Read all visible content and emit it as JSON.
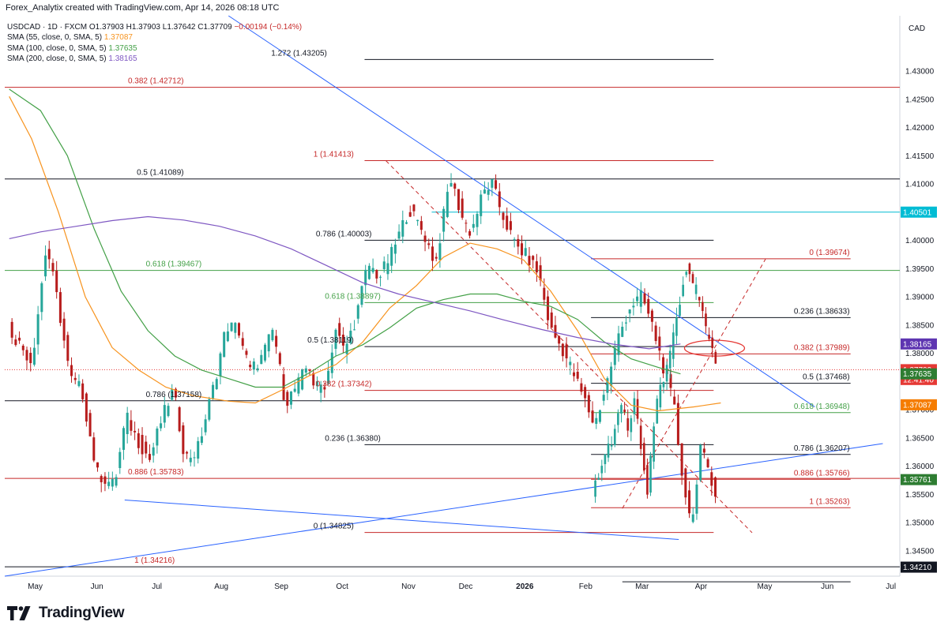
{
  "header": {
    "credit": "Forex_Analytix created with TradingView.com, Apr 14, 2026 08:18 UTC"
  },
  "legend": {
    "symbol_line": "USDCAD · 1D · FXCM",
    "ohlc": {
      "o": "O1.37903",
      "h": "H1.37903",
      "l": "L1.37642",
      "c": "C1.37709",
      "chg": "−0.00194 (−0.14%)"
    },
    "sma": [
      {
        "label": "SMA (55, close, 0, SMA, 5)",
        "value": "1.37087",
        "color": "#f7931e"
      },
      {
        "label": "SMA (100, close, 0, SMA, 5)",
        "value": "1.37635",
        "color": "#43a047"
      },
      {
        "label": "SMA (200, close, 0, SMA, 5)",
        "value": "1.38165",
        "color": "#7e57c2"
      }
    ]
  },
  "currency": "CAD",
  "footer": {
    "brand": "TradingView"
  },
  "colors": {
    "up": "#26a69a",
    "down": "#b71c1c",
    "fib_red": "#c62828",
    "fib_green": "#43a047",
    "trend_blue": "#2962ff",
    "cyan": "#00bcd4",
    "ellipse": "#e53935"
  },
  "chart_data": {
    "type": "candlestick",
    "title": "USDCAD · 1D · FXCM",
    "y_axis": {
      "min": 1.3405,
      "max": 1.4398,
      "side": "right",
      "ticks": [
        "1.43000",
        "1.42500",
        "1.42000",
        "1.41500",
        "1.41000",
        "1.40500",
        "1.40000",
        "1.39500",
        "1.39000",
        "1.38500",
        "1.38000",
        "1.37500",
        "1.37000",
        "1.36500",
        "1.36000",
        "1.35500",
        "1.35000",
        "1.34500"
      ]
    },
    "x_axis": {
      "labels": [
        "May",
        "Jun",
        "Jul",
        "Aug",
        "Sep",
        "Oct",
        "Nov",
        "Dec",
        "2026",
        "Feb",
        "Mar",
        "Apr",
        "May",
        "Jun",
        "Jul"
      ]
    },
    "price_tags": [
      {
        "value": "1.40501",
        "bg": "#00bcd4",
        "fg": "#ffffff",
        "y": 1.40501
      },
      {
        "value": "1.38165",
        "bg": "#5e35b1",
        "fg": "#ffffff",
        "y": 1.38165
      },
      {
        "value": "1.37709",
        "bg": "#e53935",
        "fg": "#ffffff",
        "y": 1.37709
      },
      {
        "value": "12:41:40",
        "bg": "#e53935",
        "fg": "#ffffff",
        "y": 1.37535
      },
      {
        "value": "1.37635",
        "bg": "#2e7d32",
        "fg": "#ffffff",
        "y": 1.37635
      },
      {
        "value": "1.37087",
        "bg": "#f57c00",
        "fg": "#ffffff",
        "y": 1.37087
      },
      {
        "value": "1.35761",
        "bg": "#2e7d32",
        "fg": "#ffffff",
        "y": 1.35761
      },
      {
        "value": "1.34210",
        "bg": "#131722",
        "fg": "#ffffff",
        "y": 1.3421
      }
    ],
    "fib_labels": [
      {
        "text": "1.272 (1.43205)",
        "color": "#131722",
        "y": 1.43205
      },
      {
        "text": "0.382 (1.42712)",
        "color": "#c62828",
        "y": 1.42712
      },
      {
        "text": "1 (1.41413)",
        "color": "#c62828",
        "y": 1.41413
      },
      {
        "text": "0.5 (1.41089)",
        "color": "#131722",
        "y": 1.41089
      },
      {
        "text": "0.786 (1.40003)",
        "color": "#131722",
        "y": 1.40003
      },
      {
        "text": "0.618 (1.39467)",
        "color": "#43a047",
        "y": 1.39467
      },
      {
        "text": "0.618 (1.38897)",
        "color": "#43a047",
        "y": 1.38897
      },
      {
        "text": "0.5 (1.38119)",
        "color": "#131722",
        "y": 1.38119
      },
      {
        "text": "0.382 (1.37342)",
        "color": "#c62828",
        "y": 1.37342
      },
      {
        "text": "0.786 (1.37158)",
        "color": "#131722",
        "y": 1.37158
      },
      {
        "text": "0.236 (1.36380)",
        "color": "#131722",
        "y": 1.3638
      },
      {
        "text": "0.886 (1.35783)",
        "color": "#c62828",
        "y": 1.35783
      },
      {
        "text": "0 (1.34825)",
        "color": "#131722",
        "y": 1.34825
      },
      {
        "text": "1 (1.34216)",
        "color": "#c62828",
        "y": 1.34216
      },
      {
        "text": "0 (1.39674)",
        "color": "#c62828",
        "y": 1.39674
      },
      {
        "text": "0.236 (1.38633)",
        "color": "#131722",
        "y": 1.38633
      },
      {
        "text": "0.382 (1.37989)",
        "color": "#c62828",
        "y": 1.37989
      },
      {
        "text": "0.5 (1.37468)",
        "color": "#131722",
        "y": 1.37468
      },
      {
        "text": "0.618 (1.36948)",
        "color": "#43a047",
        "y": 1.36948
      },
      {
        "text": "0.786 (1.36207)",
        "color": "#131722",
        "y": 1.36207
      },
      {
        "text": "0.886 (1.35766)",
        "color": "#c62828",
        "y": 1.35766
      },
      {
        "text": "1 (1.35263)",
        "color": "#c62828",
        "y": 1.35263
      }
    ],
    "sma_series": [
      {
        "name": "SMA 55",
        "color": "#f7931e",
        "points": [
          [
            0.005,
            1.4255
          ],
          [
            0.03,
            1.418
          ],
          [
            0.06,
            1.405
          ],
          [
            0.09,
            1.39
          ],
          [
            0.12,
            1.381
          ],
          [
            0.15,
            1.377
          ],
          [
            0.18,
            1.374
          ],
          [
            0.21,
            1.3725
          ],
          [
            0.25,
            1.3715
          ],
          [
            0.28,
            1.3712
          ],
          [
            0.31,
            1.3735
          ],
          [
            0.34,
            1.376
          ],
          [
            0.37,
            1.378
          ],
          [
            0.4,
            1.382
          ],
          [
            0.43,
            1.388
          ],
          [
            0.46,
            1.392
          ],
          [
            0.49,
            1.397
          ],
          [
            0.52,
            1.3995
          ],
          [
            0.55,
            1.3985
          ],
          [
            0.58,
            1.3965
          ],
          [
            0.61,
            1.391
          ],
          [
            0.64,
            1.384
          ],
          [
            0.67,
            1.3755
          ],
          [
            0.7,
            1.3708
          ],
          [
            0.73,
            1.3698
          ],
          [
            0.77,
            1.3705
          ],
          [
            0.8,
            1.3712
          ]
        ]
      },
      {
        "name": "SMA 100",
        "color": "#43a047",
        "points": [
          [
            0.005,
            1.4268
          ],
          [
            0.04,
            1.423
          ],
          [
            0.07,
            1.415
          ],
          [
            0.1,
            1.402
          ],
          [
            0.13,
            1.391
          ],
          [
            0.16,
            1.384
          ],
          [
            0.19,
            1.3795
          ],
          [
            0.22,
            1.377
          ],
          [
            0.25,
            1.3755
          ],
          [
            0.28,
            1.374
          ],
          [
            0.31,
            1.374
          ],
          [
            0.34,
            1.3765
          ],
          [
            0.37,
            1.3795
          ],
          [
            0.4,
            1.3815
          ],
          [
            0.43,
            1.3845
          ],
          [
            0.46,
            1.388
          ],
          [
            0.49,
            1.3895
          ],
          [
            0.52,
            1.3905
          ],
          [
            0.55,
            1.3905
          ],
          [
            0.58,
            1.3892
          ],
          [
            0.61,
            1.3883
          ],
          [
            0.64,
            1.386
          ],
          [
            0.67,
            1.382
          ],
          [
            0.7,
            1.379
          ],
          [
            0.73,
            1.3775
          ],
          [
            0.755,
            1.37635
          ]
        ]
      },
      {
        "name": "SMA 200",
        "color": "#7e57c2",
        "points": [
          [
            0.005,
            1.4003
          ],
          [
            0.04,
            1.4015
          ],
          [
            0.08,
            1.4025
          ],
          [
            0.12,
            1.4035
          ],
          [
            0.16,
            1.4042
          ],
          [
            0.2,
            1.4036
          ],
          [
            0.24,
            1.4025
          ],
          [
            0.28,
            1.4008
          ],
          [
            0.32,
            1.3985
          ],
          [
            0.36,
            1.3955
          ],
          [
            0.4,
            1.3925
          ],
          [
            0.44,
            1.3905
          ],
          [
            0.48,
            1.389
          ],
          [
            0.52,
            1.3875
          ],
          [
            0.56,
            1.3858
          ],
          [
            0.6,
            1.3842
          ],
          [
            0.64,
            1.3828
          ],
          [
            0.68,
            1.3816
          ],
          [
            0.72,
            1.3808
          ],
          [
            0.755,
            1.38165
          ]
        ]
      }
    ],
    "candles": {
      "n": 240,
      "start_x_frac": 0.006,
      "end_x_frac": 0.796,
      "anchors": [
        [
          0,
          1.3845
        ],
        [
          8,
          1.3785
        ],
        [
          13,
          1.3992
        ],
        [
          17,
          1.3885
        ],
        [
          21,
          1.3755
        ],
        [
          25,
          1.3735
        ],
        [
          30,
          1.3588
        ],
        [
          36,
          1.3565
        ],
        [
          40,
          1.3688
        ],
        [
          44,
          1.3645
        ],
        [
          48,
          1.3612
        ],
        [
          52,
          1.3682
        ],
        [
          56,
          1.3735
        ],
        [
          60,
          1.3615
        ],
        [
          64,
          1.3625
        ],
        [
          66,
          1.3665
        ],
        [
          70,
          1.3748
        ],
        [
          74,
          1.3848
        ],
        [
          78,
          1.3845
        ],
        [
          82,
          1.3768
        ],
        [
          86,
          1.3792
        ],
        [
          90,
          1.3843
        ],
        [
          94,
          1.3712
        ],
        [
          98,
          1.3742
        ],
        [
          102,
          1.3782
        ],
        [
          104,
          1.3738
        ],
        [
          108,
          1.3748
        ],
        [
          111,
          1.3845
        ],
        [
          114,
          1.3803
        ],
        [
          118,
          1.3862
        ],
        [
          122,
          1.3958
        ],
        [
          126,
          1.3935
        ],
        [
          130,
          1.3975
        ],
        [
          136,
          1.4056
        ],
        [
          141,
          1.4013
        ],
        [
          145,
          1.3958
        ],
        [
          150,
          1.4112
        ],
        [
          154,
          1.4042
        ],
        [
          157,
          1.4013
        ],
        [
          161,
          1.4082
        ],
        [
          164,
          1.4102
        ],
        [
          168,
          1.4042
        ],
        [
          172,
          1.3992
        ],
        [
          176,
          1.3972
        ],
        [
          180,
          1.3942
        ],
        [
          184,
          1.3843
        ],
        [
          188,
          1.3808
        ],
        [
          192,
          1.3762
        ],
        [
          196,
          1.3712
        ],
        [
          199,
          1.3672
        ],
        [
          203,
          1.3745
        ],
        [
          207,
          1.3828
        ],
        [
          211,
          1.3882
        ],
        [
          215,
          1.3902
        ],
        [
          219,
          1.3842
        ],
        [
          223,
          1.3762
        ],
        [
          226,
          1.3705
        ],
        [
          228,
          1.3612
        ],
        [
          231,
          1.3512
        ],
        [
          233,
          1.3532
        ],
        [
          235,
          1.3628
        ],
        [
          238,
          1.3592
        ],
        [
          240,
          1.3552
        ]
      ]
    },
    "candles2": {
      "start_x_frac": 0.658,
      "end_x_frac": 0.796,
      "anchors": [
        [
          0,
          1.3555
        ],
        [
          6,
          1.3615
        ],
        [
          10,
          1.3658
        ],
        [
          14,
          1.3705
        ],
        [
          17,
          1.3665
        ],
        [
          20,
          1.3712
        ],
        [
          23,
          1.3635
        ],
        [
          26,
          1.3545
        ],
        [
          29,
          1.3672
        ],
        [
          32,
          1.3742
        ],
        [
          35,
          1.3765
        ],
        [
          38,
          1.3832
        ],
        [
          41,
          1.3888
        ],
        [
          44,
          1.3955
        ],
        [
          47,
          1.3917
        ],
        [
          50,
          1.3905
        ],
        [
          52,
          1.3862
        ],
        [
          55,
          1.3825
        ],
        [
          58,
          1.3772
        ]
      ]
    }
  }
}
